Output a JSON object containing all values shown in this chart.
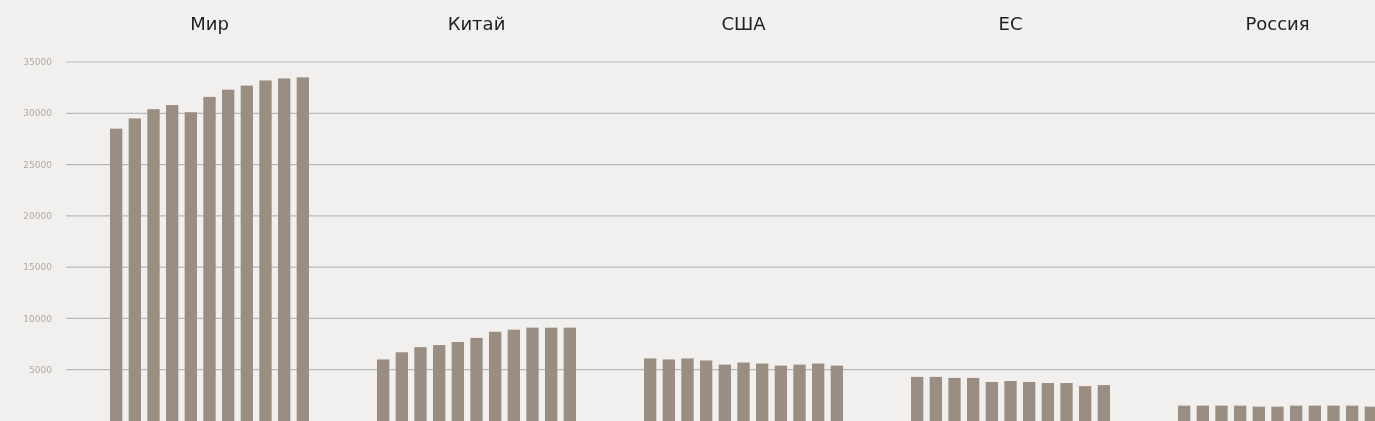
{
  "chart_data": {
    "type": "bar",
    "categories": [
      "Мир",
      "Китай",
      "США",
      "ЕС",
      "Россия"
    ],
    "series": [
      {
        "color": "#9a8d82",
        "values": [
          28500,
          6000,
          6100,
          4300,
          1500
        ]
      },
      {
        "color": "#9a8d82",
        "values": [
          29500,
          6700,
          6000,
          4300,
          1500
        ]
      },
      {
        "color": "#9a8d82",
        "values": [
          30400,
          7200,
          6100,
          4200,
          1500
        ]
      },
      {
        "color": "#9a8d82",
        "values": [
          30800,
          7400,
          5900,
          4200,
          1500
        ]
      },
      {
        "color": "#9a8d82",
        "values": [
          30100,
          7700,
          5500,
          3800,
          1400
        ]
      },
      {
        "color": "#9a8d82",
        "values": [
          31600,
          8100,
          5700,
          3900,
          1400
        ]
      },
      {
        "color": "#9a8d82",
        "values": [
          32300,
          8700,
          5600,
          3800,
          1500
        ]
      },
      {
        "color": "#9a8d82",
        "values": [
          32700,
          8900,
          5400,
          3700,
          1500
        ]
      },
      {
        "color": "#9a8d82",
        "values": [
          33200,
          9100,
          5500,
          3700,
          1500
        ]
      },
      {
        "color": "#9a8d82",
        "values": [
          33400,
          9100,
          5600,
          3400,
          1500
        ]
      },
      {
        "color": "#9a8d82",
        "values": [
          33500,
          9100,
          5400,
          3500,
          1400
        ]
      }
    ],
    "ylim": [
      0,
      35000
    ],
    "yticks": [
      5000,
      10000,
      15000,
      20000,
      25000,
      30000,
      35000
    ],
    "grid": "y"
  }
}
